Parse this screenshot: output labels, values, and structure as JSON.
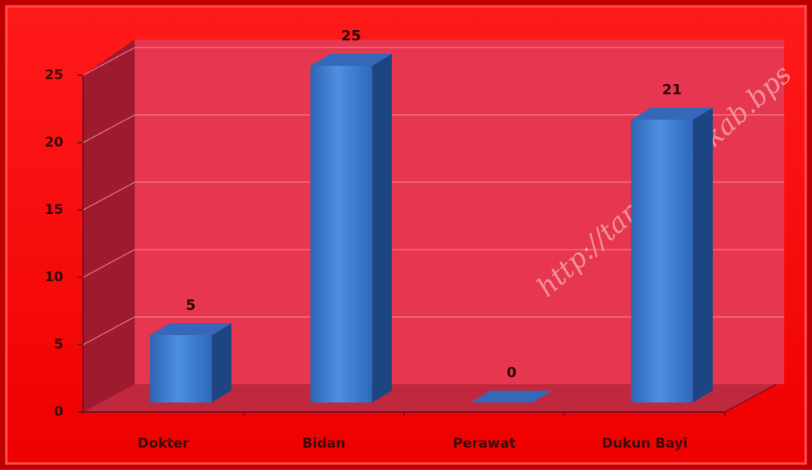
{
  "chart_data": {
    "type": "bar3d",
    "categories": [
      "Dokter",
      "Bidan",
      "Perawat",
      "Dukun Bayi"
    ],
    "values": [
      5,
      25,
      0,
      21
    ],
    "color": "#3a78d0",
    "ylim": [
      0,
      25
    ],
    "yticks": [
      0,
      5,
      10,
      15,
      20,
      25
    ],
    "grid": true,
    "watermark": "http://tangerangkab.bps"
  }
}
